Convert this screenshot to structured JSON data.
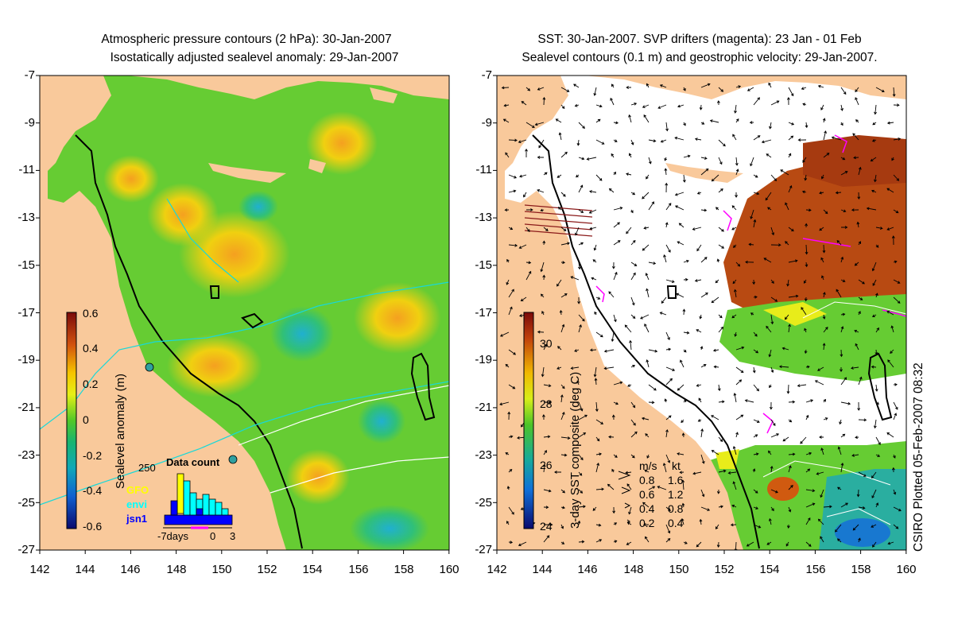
{
  "left_panel": {
    "title_line1": "Atmospheric pressure contours (2 hPa): 30-Jan-2007",
    "title_line2": "Isostatically adjusted sealevel anomaly: 29-Jan-2007",
    "colorbar_label": "Sealevel anomaly (m)",
    "colorbar_ticks": [
      "0.6",
      "0.4",
      "0.2",
      "0",
      "-0.2",
      "-0.4",
      "-0.6"
    ],
    "data_count": {
      "title": "Data count",
      "max_label": "250",
      "sat_labels": [
        "GFO",
        "envi",
        "jsn1"
      ],
      "sat_colors": [
        "#ffff00",
        "#00ffff",
        "#0000ff"
      ],
      "axis_labels": [
        "-7days",
        "0",
        "3"
      ]
    }
  },
  "right_panel": {
    "title_line1": "SST: 30-Jan-2007. SVP drifters (magenta): 23 Jan - 01 Feb",
    "title_line2": "Sealevel contours (0.1 m) and geostrophic velocity: 29-Jan-2007.",
    "colorbar_label": "3-day SST composite (deg C)",
    "colorbar_ticks": [
      "30",
      "28",
      "26",
      "24"
    ],
    "velocity_legend": {
      "header_ms": "m/s",
      "header_kt": "kt",
      "rows": [
        {
          "ms": "0.8",
          "kt": "1.6"
        },
        {
          "ms": "0.6",
          "kt": "1.2"
        },
        {
          "ms": "0.4",
          "kt": "0.8"
        },
        {
          "ms": "0.2",
          "kt": "0.4"
        }
      ]
    }
  },
  "axes": {
    "lat_ticks": [
      "-7",
      "-9",
      "-11",
      "-13",
      "-15",
      "-17",
      "-19",
      "-21",
      "-23",
      "-25",
      "-27"
    ],
    "lon_ticks": [
      "142",
      "144",
      "146",
      "148",
      "150",
      "152",
      "154",
      "156",
      "158",
      "160"
    ]
  },
  "credit": "CSIRO Plotted 05-Feb-2007 08:32",
  "colors": {
    "land": "#f9c99b",
    "anomaly_zero": "#66cc33",
    "sst_warm": "#b84a12",
    "sst_mid": "#66cc33",
    "drifters": "#ff00ff"
  }
}
